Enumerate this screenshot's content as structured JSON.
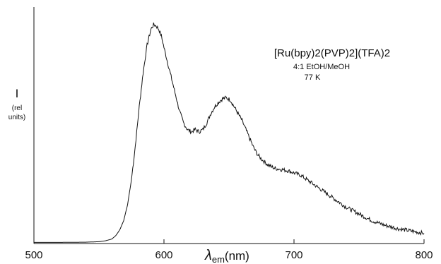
{
  "chart_data": {
    "type": "line",
    "title": "",
    "annotation": {
      "line1": "[Ru(bpy)2(PVP)2](TFA)2",
      "line2": "4:1 EtOH/MeOH",
      "line3": "77 K"
    },
    "ylabel": {
      "symbol": "I",
      "unit_line1": "(rel",
      "unit_line2": "units)"
    },
    "xlabel": {
      "symbol": "λ",
      "subscript": "em",
      "unit": "(nm)"
    },
    "xlim": [
      500,
      800
    ],
    "ylim": [
      0,
      1.0
    ],
    "x_ticks": [
      500,
      600,
      700,
      800
    ],
    "x_tick_labels": [
      "500",
      "600",
      "700",
      "800"
    ],
    "grid": false,
    "legend": "none",
    "series": [
      {
        "x": [
          500,
          520,
          540,
          550,
          555,
          560,
          563,
          566,
          569,
          572,
          575,
          578,
          581,
          584,
          587,
          590,
          592,
          594,
          596,
          598,
          600,
          603,
          606,
          609,
          612,
          615,
          618,
          621,
          624,
          627,
          630,
          633,
          636,
          639,
          642,
          645,
          648,
          651,
          654,
          657,
          660,
          663,
          666,
          669,
          672,
          675,
          680,
          685,
          690,
          695,
          700,
          705,
          710,
          715,
          720,
          730,
          740,
          750,
          760,
          770,
          780,
          790,
          800
        ],
        "y": [
          0.005,
          0.005,
          0.006,
          0.008,
          0.012,
          0.02,
          0.035,
          0.06,
          0.1,
          0.17,
          0.28,
          0.43,
          0.6,
          0.75,
          0.87,
          0.94,
          0.96,
          0.955,
          0.94,
          0.91,
          0.86,
          0.79,
          0.72,
          0.65,
          0.58,
          0.53,
          0.5,
          0.49,
          0.5,
          0.49,
          0.5,
          0.53,
          0.57,
          0.6,
          0.62,
          0.635,
          0.64,
          0.63,
          0.6,
          0.57,
          0.54,
          0.5,
          0.46,
          0.42,
          0.39,
          0.37,
          0.345,
          0.33,
          0.325,
          0.32,
          0.31,
          0.3,
          0.28,
          0.26,
          0.24,
          0.2,
          0.16,
          0.13,
          0.1,
          0.08,
          0.065,
          0.055,
          0.045
        ]
      }
    ]
  }
}
